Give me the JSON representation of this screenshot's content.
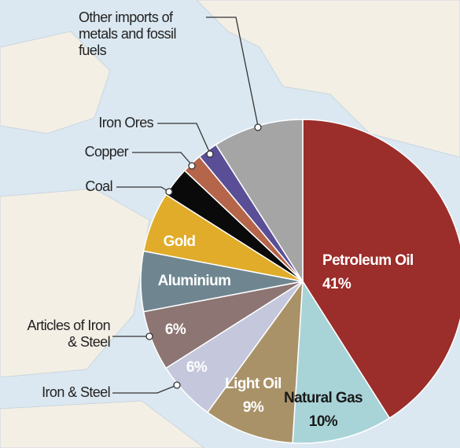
{
  "chart_data": {
    "type": "pie",
    "categories": [
      "Petroleum Oil",
      "Natural Gas",
      "Light Oil",
      "Iron & Steel",
      "Articles of Iron & Steel",
      "Aluminium",
      "Gold",
      "Coal",
      "Copper",
      "Iron Ores",
      "Other imports of metals and fossil fuels"
    ],
    "values": [
      41,
      10,
      9,
      6,
      6,
      6,
      6,
      3,
      2,
      2,
      9
    ],
    "value_labels": [
      "41%",
      "10%",
      "9%",
      "6%",
      "6%",
      null,
      null,
      null,
      null,
      null,
      null
    ],
    "colors": [
      "#9b2d2a",
      "#a8d4d8",
      "#a99268",
      "#c5c8dc",
      "#8c7572",
      "#6f8691",
      "#e0ac2a",
      "#0a0a0a",
      "#b5654a",
      "#5a4f96",
      "#a5a5a5"
    ]
  }
}
